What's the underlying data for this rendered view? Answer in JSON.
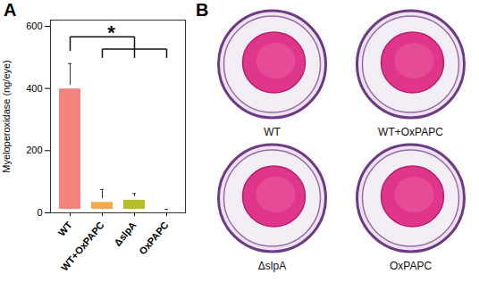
{
  "chart_data": {
    "type": "bar",
    "title": "A",
    "y_label": "Myeloperoxidase (ng/eye)",
    "categories": [
      "WT",
      "WT+OxPAPC",
      "ΔslpA",
      "OxPAPC"
    ],
    "values": [
      410,
      45,
      52,
      8
    ],
    "errors": [
      70,
      30,
      10,
      3
    ],
    "colors": [
      "#f4837d",
      "#f7a648",
      "#b4be2c",
      "#38c25a"
    ],
    "ylim": [
      0,
      620
    ],
    "yticks": [
      0,
      200,
      400,
      600
    ],
    "grid": false,
    "annotations": [
      {
        "text": "*",
        "from": "WT",
        "to": [
          "WT+OxPAPC",
          "ΔslpA",
          "OxPAPC"
        ]
      }
    ]
  },
  "figure": {
    "label": "B",
    "images": [
      {
        "caption": "WT"
      },
      {
        "caption": "WT+OxPAPC"
      },
      {
        "caption": "ΔslpA"
      },
      {
        "caption": "OxPAPC"
      }
    ]
  }
}
